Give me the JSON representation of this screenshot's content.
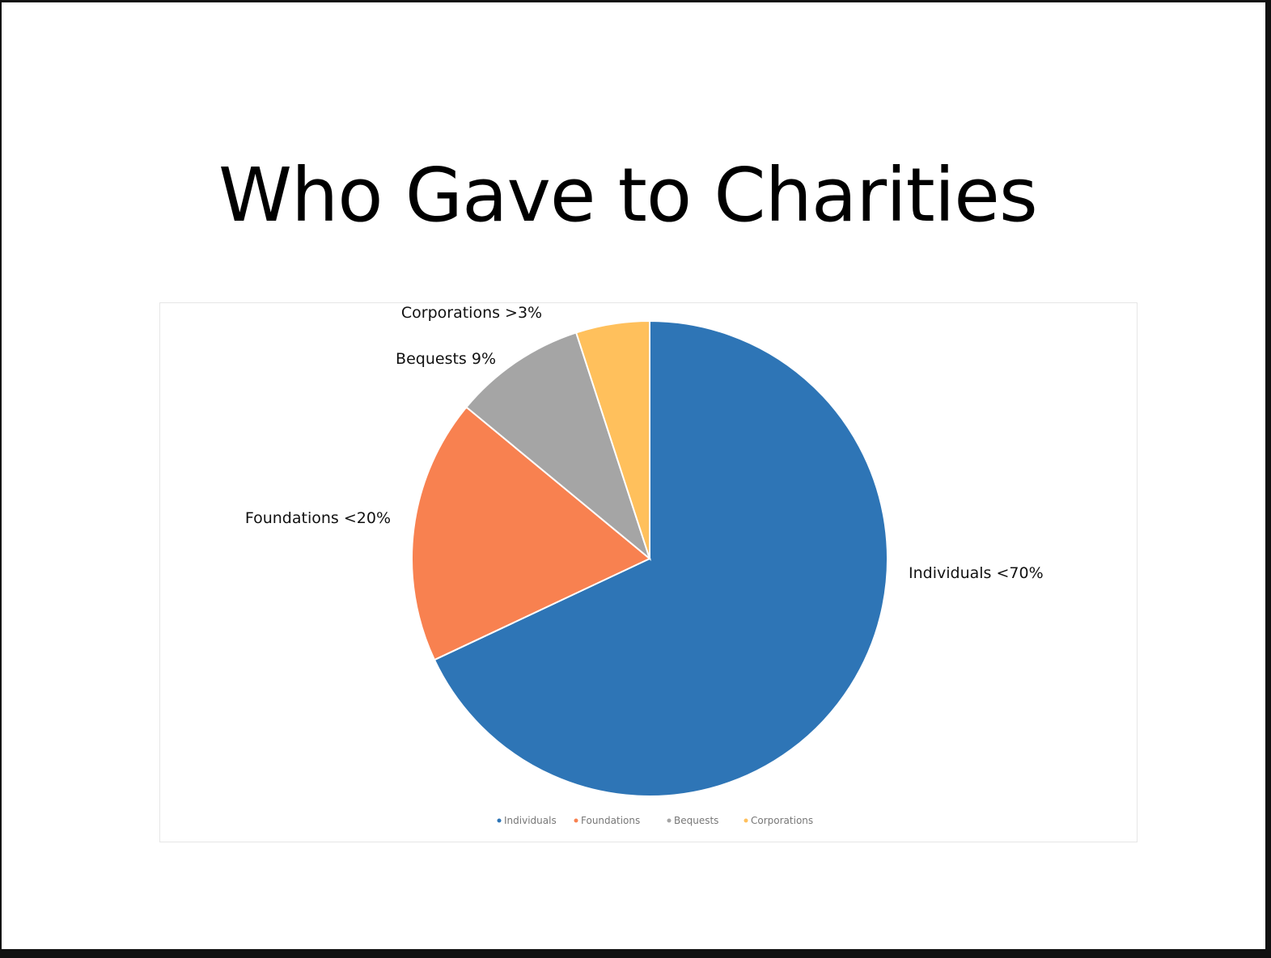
{
  "title": "Who Gave to Charities",
  "chart_data": {
    "type": "pie",
    "title": "",
    "start_angle": "12 o'clock, clockwise",
    "legend_position": "bottom",
    "categories": [
      "Individuals",
      "Foundations",
      "Bequests",
      "Corporations"
    ],
    "values": [
      68,
      18,
      9,
      5
    ],
    "data_labels": [
      "Individuals <70%",
      "Foundations <20%",
      "Bequests 9%",
      "Corporations >3%"
    ],
    "colors": [
      "#2E75B6",
      "#F88150",
      "#A5A5A5",
      "#FFC05C"
    ]
  }
}
